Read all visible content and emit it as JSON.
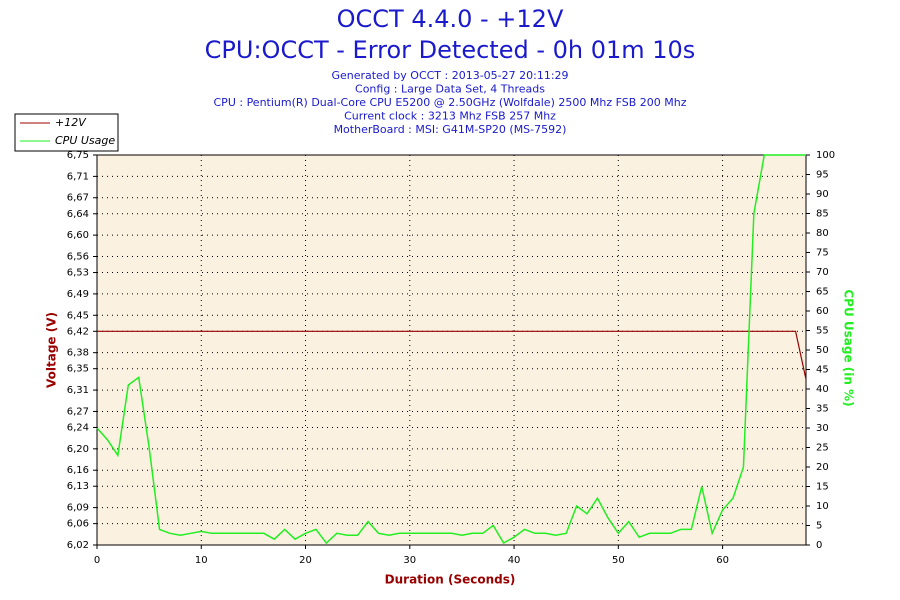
{
  "chart_data": {
    "type": "line",
    "title": "OCCT 4.4.0 - +12V",
    "subtitle": "CPU:OCCT - Error Detected - 0h 01m 10s",
    "info": [
      "Generated by OCCT : 2013-05-27 20:11:29",
      "Config : Large Data Set, 4 Threads",
      "CPU : Pentium(R) Dual-Core CPU E5200 @ 2.50GHz (Wolfdale) 2500 Mhz FSB 200 Mhz",
      "Current clock : 3213 Mhz FSB 257 Mhz",
      "MotherBoard : MSI: G41M-SP20 (MS-7592)"
    ],
    "xlabel": "Duration (Seconds)",
    "ylabel": "Voltage (V)",
    "y2label": "CPU Usage (in %)",
    "x": [
      0,
      1,
      2,
      3,
      4,
      5,
      6,
      7,
      8,
      9,
      10,
      11,
      12,
      13,
      14,
      15,
      16,
      17,
      18,
      19,
      20,
      21,
      22,
      23,
      24,
      25,
      26,
      27,
      28,
      29,
      30,
      31,
      32,
      33,
      34,
      35,
      36,
      37,
      38,
      39,
      40,
      41,
      42,
      43,
      44,
      45,
      46,
      47,
      48,
      49,
      50,
      51,
      52,
      53,
      54,
      55,
      56,
      57,
      58,
      59,
      60,
      61,
      62,
      63,
      64,
      65,
      66,
      67,
      68
    ],
    "series": [
      {
        "name": "+12V",
        "color": "#990000",
        "axis": "y",
        "values": [
          6.42,
          6.42,
          6.42,
          6.42,
          6.42,
          6.42,
          6.42,
          6.42,
          6.42,
          6.42,
          6.42,
          6.42,
          6.42,
          6.42,
          6.42,
          6.42,
          6.42,
          6.42,
          6.42,
          6.42,
          6.42,
          6.42,
          6.42,
          6.42,
          6.42,
          6.42,
          6.42,
          6.42,
          6.42,
          6.42,
          6.42,
          6.42,
          6.42,
          6.42,
          6.42,
          6.42,
          6.42,
          6.42,
          6.42,
          6.42,
          6.42,
          6.42,
          6.42,
          6.42,
          6.42,
          6.42,
          6.42,
          6.42,
          6.42,
          6.42,
          6.42,
          6.42,
          6.42,
          6.42,
          6.42,
          6.42,
          6.42,
          6.42,
          6.42,
          6.42,
          6.42,
          6.42,
          6.42,
          6.42,
          6.42,
          6.42,
          6.42,
          6.42,
          6.33
        ]
      },
      {
        "name": "CPU Usage",
        "color": "#22ee22",
        "axis": "y2",
        "values": [
          30,
          27,
          23,
          41,
          43,
          25,
          4,
          3,
          2.5,
          3,
          3.5,
          3,
          3,
          3,
          3,
          3,
          3,
          1.5,
          4,
          1.5,
          3,
          4,
          0.5,
          3,
          2.5,
          2.5,
          6,
          3,
          2.5,
          3,
          3,
          3,
          3,
          3,
          3,
          2.5,
          3,
          3,
          5,
          0.5,
          2,
          4,
          3,
          3,
          2.5,
          3,
          10,
          8,
          12,
          7,
          3,
          6,
          2,
          3,
          3,
          3,
          4,
          4,
          15,
          3,
          9,
          12,
          20,
          85,
          100,
          100,
          100,
          100,
          100
        ]
      }
    ],
    "xlim": [
      0,
      68
    ],
    "xticks": [
      0,
      10,
      20,
      30,
      40,
      50,
      60
    ],
    "ylim": [
      6.02,
      6.75
    ],
    "yticks": [
      {
        "value": 6.02,
        "label": "6,02"
      },
      {
        "value": 6.06,
        "label": "6,06"
      },
      {
        "value": 6.09,
        "label": "6,09"
      },
      {
        "value": 6.13,
        "label": "6,13"
      },
      {
        "value": 6.16,
        "label": "6,16"
      },
      {
        "value": 6.2,
        "label": "6,20"
      },
      {
        "value": 6.24,
        "label": "6,24"
      },
      {
        "value": 6.27,
        "label": "6,27"
      },
      {
        "value": 6.31,
        "label": "6,31"
      },
      {
        "value": 6.35,
        "label": "6,35"
      },
      {
        "value": 6.38,
        "label": "6,38"
      },
      {
        "value": 6.42,
        "label": "6,42"
      },
      {
        "value": 6.45,
        "label": "6,45"
      },
      {
        "value": 6.49,
        "label": "6,49"
      },
      {
        "value": 6.53,
        "label": "6,53"
      },
      {
        "value": 6.56,
        "label": "6,56"
      },
      {
        "value": 6.6,
        "label": "6,60"
      },
      {
        "value": 6.64,
        "label": "6,64"
      },
      {
        "value": 6.67,
        "label": "6,67"
      },
      {
        "value": 6.71,
        "label": "6,71"
      },
      {
        "value": 6.75,
        "label": "6,75"
      }
    ],
    "y2lim": [
      0,
      100
    ],
    "y2ticks": [
      0,
      5,
      10,
      15,
      20,
      25,
      30,
      35,
      40,
      45,
      50,
      55,
      60,
      65,
      70,
      75,
      80,
      85,
      90,
      95,
      100
    ],
    "grid": true,
    "legend": "top-left"
  }
}
